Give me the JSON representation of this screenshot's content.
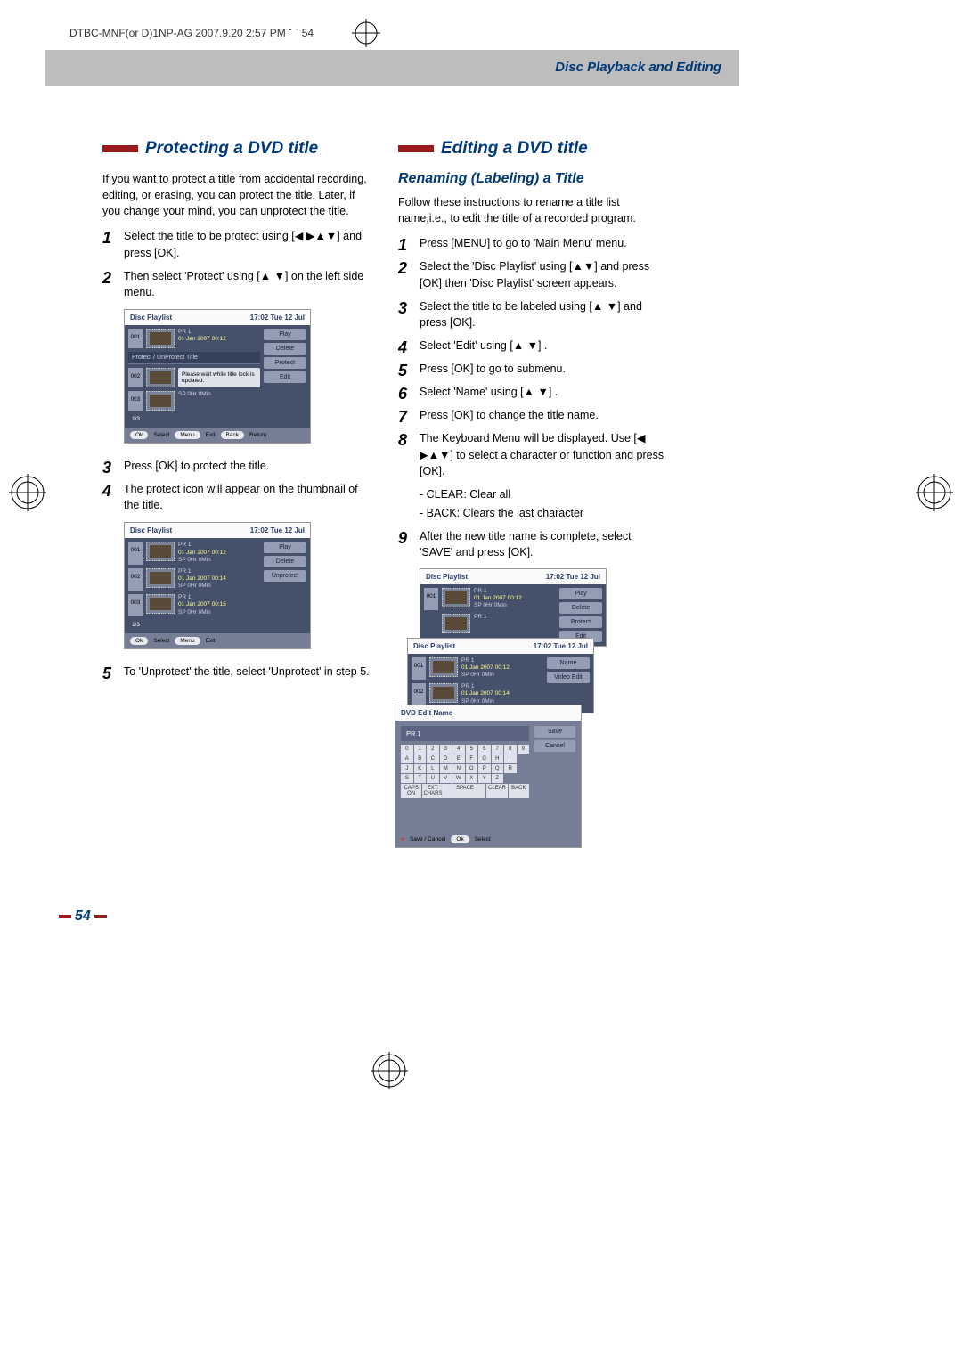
{
  "print": {
    "header": "DTBC-MNF(or D)1NP-AG 2007.9.20 2:57 PM ˘ ` 54"
  },
  "header": {
    "title": "Disc Playback and Editing"
  },
  "left": {
    "heading": "Protecting a DVD title",
    "intro": "If you want to protect a title from accidental recording, editing, or erasing, you can protect the title. Later, if you change your mind, you can unprotect the title.",
    "steps": [
      "Select the title to be protect using [◀ ▶▲▼] and press [OK].",
      "Then select 'Protect' using [▲ ▼] on the left side menu.",
      "Press [OK] to protect the title.",
      "The protect icon will appear on the thumbnail of the title.",
      "To 'Unprotect' the title, select 'Unprotect' in step 5."
    ]
  },
  "right": {
    "heading": "Editing a DVD title",
    "sub": "Renaming (Labeling) a Title",
    "intro": "Follow these instructions to rename a title list name,i.e., to edit the title of a recorded program.",
    "steps": [
      "Press [MENU] to go to 'Main Menu' menu.",
      "Select the 'Disc Playlist' using [▲▼] and press [OK] then 'Disc Playlist' screen appears.",
      "Select the title to be labeled using [▲ ▼] and press [OK].",
      "Select 'Edit' using [▲ ▼] .",
      "Press [OK] to go to submenu.",
      "Select 'Name' using [▲ ▼] .",
      "Press [OK] to change the title name.",
      "The Keyboard Menu will be displayed. Use [◀ ▶▲▼] to select a character or function and press [OK].",
      "After the new title name is complete, select 'SAVE' and press [OK]."
    ],
    "notes": {
      "clear": "- CLEAR: Clear all",
      "back": "- BACK: Clears the last character"
    }
  },
  "shot1": {
    "title": "Disc Playlist",
    "time": "17:02 Tue 12 Jul",
    "meta1a": "PR 1",
    "meta1b": "01 Jan 2007 00:12",
    "banner": "Protect / UnProtect Title",
    "popup": "Please wait while title lock is updated.",
    "page": "1/3",
    "btns": [
      "Play",
      "Delete",
      "Protect",
      "Edit"
    ],
    "footer": {
      "ok": "Ok",
      "select": "Select",
      "menu": "Menu",
      "exit": "Exit",
      "back": "Back",
      "return": "Return"
    }
  },
  "shot2": {
    "title": "Disc Playlist",
    "time": "17:02 Tue 12 Jul",
    "r1": {
      "a": "PR 1",
      "b": "01 Jan 2007 00:12",
      "c": "SP   0Hr 0Min"
    },
    "r2": {
      "a": "PR 1",
      "b": "01 Jan 2007 00:14",
      "c": "SP   0Hr 0Min"
    },
    "r3": {
      "a": "PR 1",
      "b": "01 Jan 2007 00:15",
      "c": "SP   0Hr 0Min"
    },
    "page": "1/3",
    "btns": [
      "Play",
      "Delete",
      "Unprotect"
    ],
    "footer": {
      "ok": "Ok",
      "select": "Select",
      "menu": "Menu",
      "exit": "Exit"
    }
  },
  "shot3a": {
    "title": "Disc Playlist",
    "time": "17:02 Tue 12 Jul",
    "r1": {
      "a": "PR 1",
      "b": "01 Jan 2007 00:12",
      "c": "SP   0Hr 0Min"
    },
    "r2": {
      "a": "PR 1"
    },
    "btns": [
      "Play",
      "Delete",
      "Protect",
      "Edit"
    ]
  },
  "shot3b": {
    "title": "Disc Playlist",
    "time": "17:02 Tue 12 Jul",
    "r1": {
      "a": "PR 1",
      "b": "01 Jan 2007 00:12",
      "c": "SP   0Hr 0Min"
    },
    "r2": {
      "a": "PR 1",
      "b": "01 Jan 2007 00:14",
      "c": "SP   0Hr 0Min"
    },
    "btns": [
      "Name",
      "Video Edit"
    ]
  },
  "shot3c": {
    "title": "DVD Edit Name",
    "input": "PR 1",
    "btns": [
      "Save",
      "Cancel"
    ],
    "keys": [
      "0",
      "1",
      "2",
      "3",
      "4",
      "5",
      "6",
      "7",
      "8",
      "9",
      "A",
      "B",
      "C",
      "D",
      "E",
      "F",
      "G",
      "H",
      "I",
      "",
      "J",
      "K",
      "L",
      "M",
      "N",
      "O",
      "P",
      "Q",
      "R",
      "",
      "S",
      "T",
      "U",
      "V",
      "W",
      "X",
      "Y",
      "Z",
      "",
      ""
    ],
    "special": {
      "caps": "CAPS ON",
      "ext": "EXT. CHARS",
      "space": "SPACE",
      "clear": "CLEAR",
      "back": "BACK"
    },
    "footer": {
      "icon": "●",
      "save": "Save / Cancel",
      "ok": "Ok",
      "select": "Select"
    }
  },
  "sp": "SP  0Hr 0Min",
  "page_number": "54"
}
